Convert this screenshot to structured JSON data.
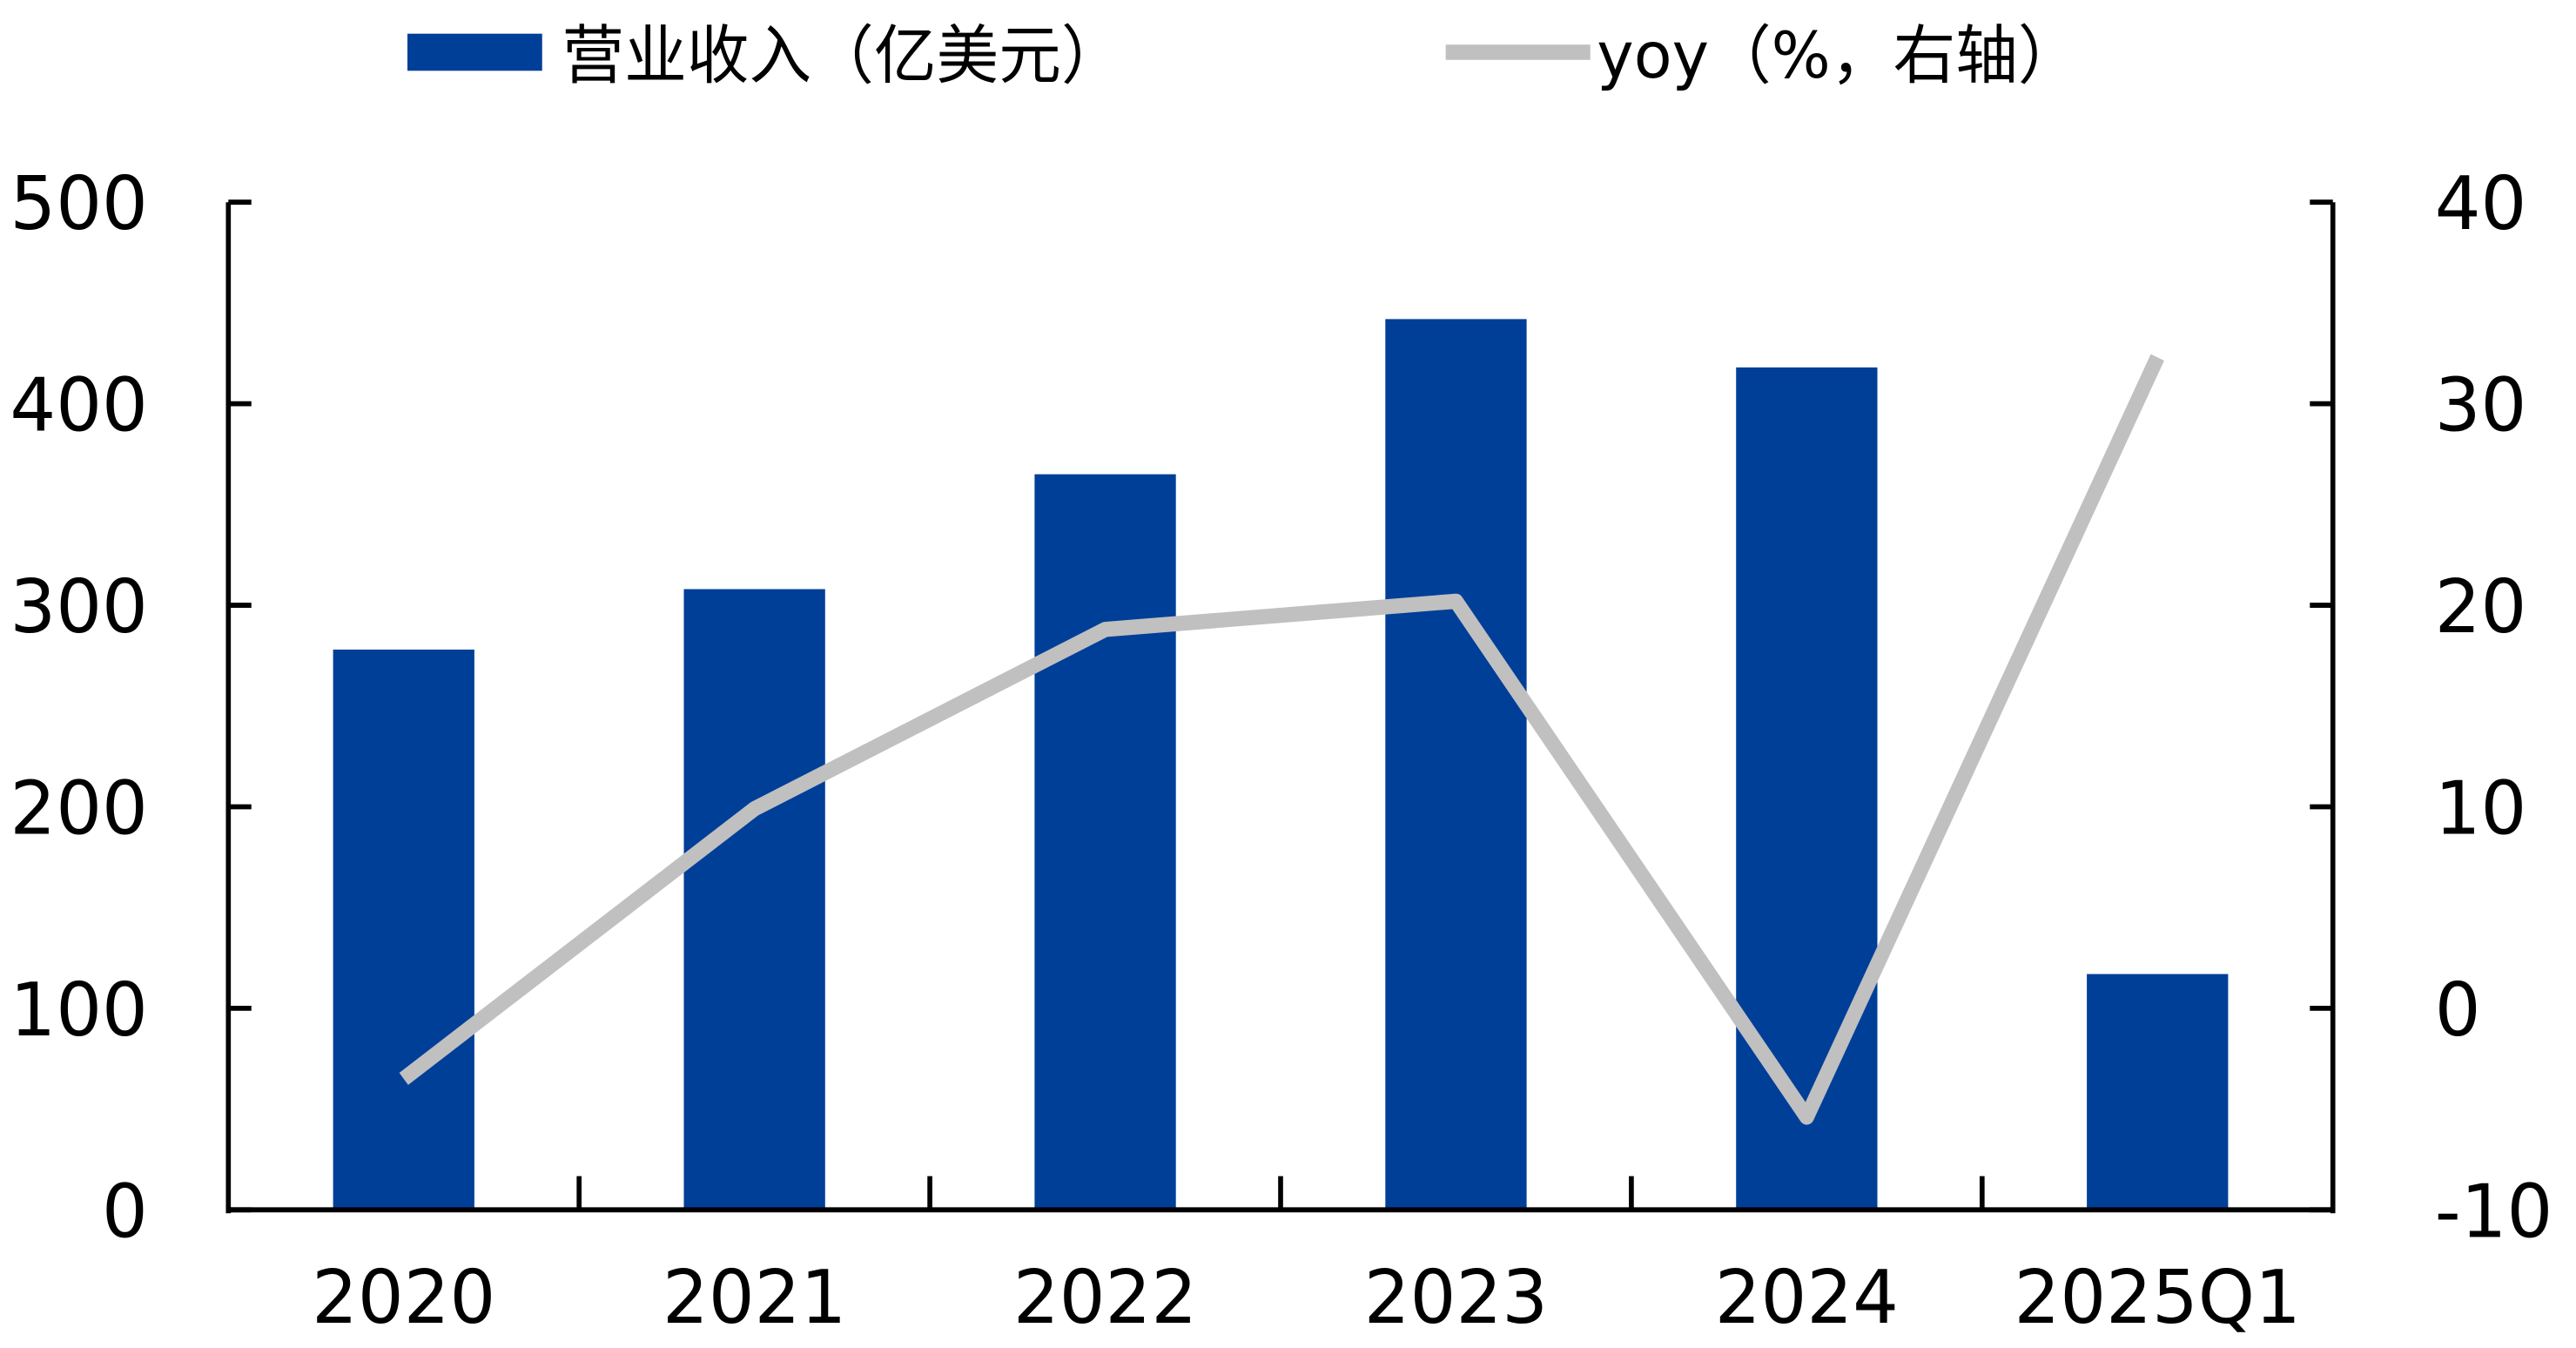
{
  "chart_data": {
    "type": "bar+line",
    "categories": [
      "2020",
      "2021",
      "2022",
      "2023",
      "2024",
      "2025Q1"
    ],
    "series": [
      {
        "name": "营业收入（亿美元）",
        "type": "bar",
        "axis": "left",
        "color": "#003f98",
        "values": [
          278,
          308,
          365,
          442,
          418,
          117
        ]
      },
      {
        "name": "yoy（%，右轴）",
        "type": "line",
        "axis": "right",
        "color": "#c0c0c0",
        "values": [
          -3.5,
          9.9,
          18.8,
          20.2,
          -5.4,
          32.3
        ]
      }
    ],
    "y_left": {
      "lim": [
        0,
        500
      ],
      "ticks": [
        "0",
        "100",
        "200",
        "300",
        "400",
        "500"
      ]
    },
    "y_right": {
      "lim": [
        -10,
        40
      ],
      "ticks": [
        "-10",
        "0",
        "10",
        "20",
        "30",
        "40"
      ]
    },
    "grid": false,
    "legend": "top"
  }
}
